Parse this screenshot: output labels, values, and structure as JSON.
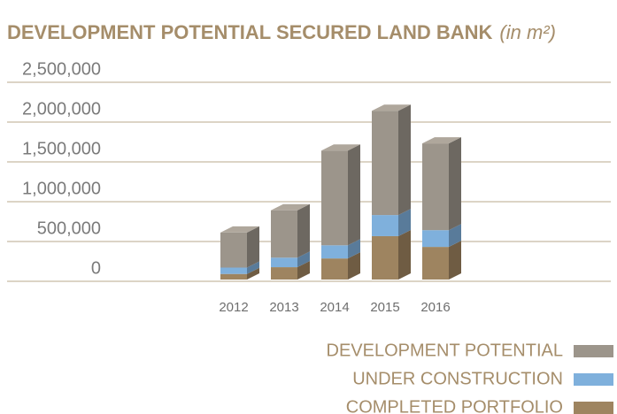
{
  "chart_data": {
    "type": "stacked-bar-3d",
    "title": "DEVELOPMENT POTENTIAL SECURED LAND BANK",
    "subtitle": "(in m²)",
    "categories": [
      "2012",
      "2013",
      "2014",
      "2015",
      "2016"
    ],
    "series": [
      {
        "name": "COMPLETED PORTFOLIO",
        "color": "#9e8460",
        "values": [
          70000,
          155000,
          265000,
          545000,
          410000
        ]
      },
      {
        "name": "UNDER CONSTRUCTION",
        "color": "#7fb0dc",
        "values": [
          80000,
          120000,
          165000,
          265000,
          210000
        ]
      },
      {
        "name": "DEVELOPMENT POTENTIAL",
        "color": "#9c958b",
        "values": [
          440000,
          595000,
          1190000,
          1310000,
          1090000
        ]
      }
    ],
    "ylim": [
      0,
      2500000
    ],
    "yticks": [
      {
        "value": 0,
        "label": "0"
      },
      {
        "value": 500000,
        "label": "500,000"
      },
      {
        "value": 1000000,
        "label": "1,000,000"
      },
      {
        "value": 1500000,
        "label": "1,500,000"
      },
      {
        "value": 2000000,
        "label": "2,000,000"
      },
      {
        "value": 2500000,
        "label": "2,500,000"
      }
    ],
    "grid": true
  }
}
